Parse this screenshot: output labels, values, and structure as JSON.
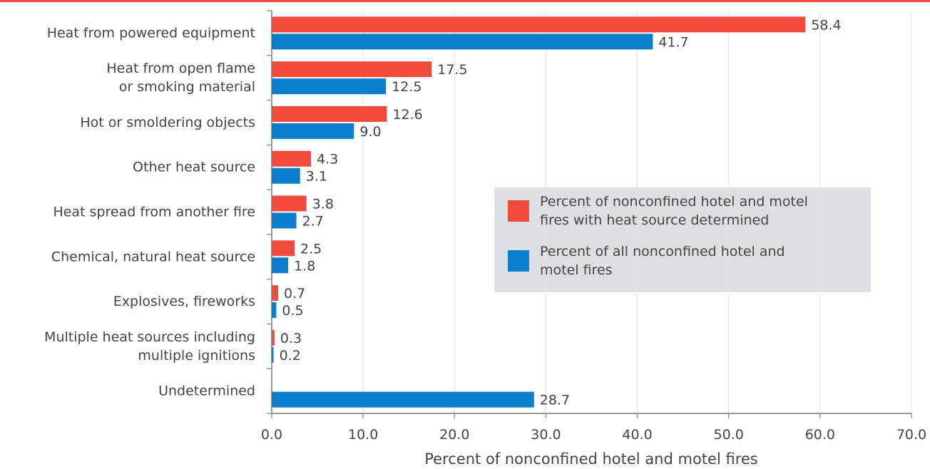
{
  "chart_data": {
    "type": "hbar",
    "categories": [
      "Heat from powered equipment",
      "Heat from open flame\nor smoking material",
      "Hot or smoldering objects",
      "Other heat source",
      "Heat spread from another fire",
      "Chemical, natural heat source",
      "Explosives, fireworks",
      "Multiple heat sources including\nmultiple ignitions",
      "Undetermined"
    ],
    "series": [
      {
        "name": "Percent of nonconfined hotel and motel\nfires with heat source determined",
        "color": "#f04b3b",
        "values": [
          58.4,
          17.5,
          12.6,
          4.3,
          3.8,
          2.5,
          0.7,
          0.3,
          null
        ],
        "value_labels": [
          "58.4",
          "17.5",
          "12.6",
          "4.3",
          "3.8",
          "2.5",
          "0.7",
          "0.3",
          null
        ]
      },
      {
        "name": "Percent of all nonconfined hotel and\nmotel fires",
        "color": "#0a7dcc",
        "values": [
          41.7,
          12.5,
          9.0,
          3.1,
          2.7,
          1.8,
          0.5,
          0.2,
          28.7
        ],
        "value_labels": [
          "41.7",
          "12.5",
          "9.0",
          "3.1",
          "2.7",
          "1.8",
          "0.5",
          "0.2",
          "28.7"
        ]
      }
    ],
    "xlabel": "Percent of nonconfined hotel and motel fires",
    "xlim": [
      0,
      70
    ],
    "xticks": [
      {
        "value": 0,
        "label": "0.0"
      },
      {
        "value": 10,
        "label": "10.0"
      },
      {
        "value": 20,
        "label": "20.0"
      },
      {
        "value": 30,
        "label": "30.0"
      },
      {
        "value": 40,
        "label": "40.0"
      },
      {
        "value": 50,
        "label": "50.0"
      },
      {
        "value": 60,
        "label": "60.0"
      },
      {
        "value": 70,
        "label": "70.0"
      }
    ],
    "grid": true
  }
}
